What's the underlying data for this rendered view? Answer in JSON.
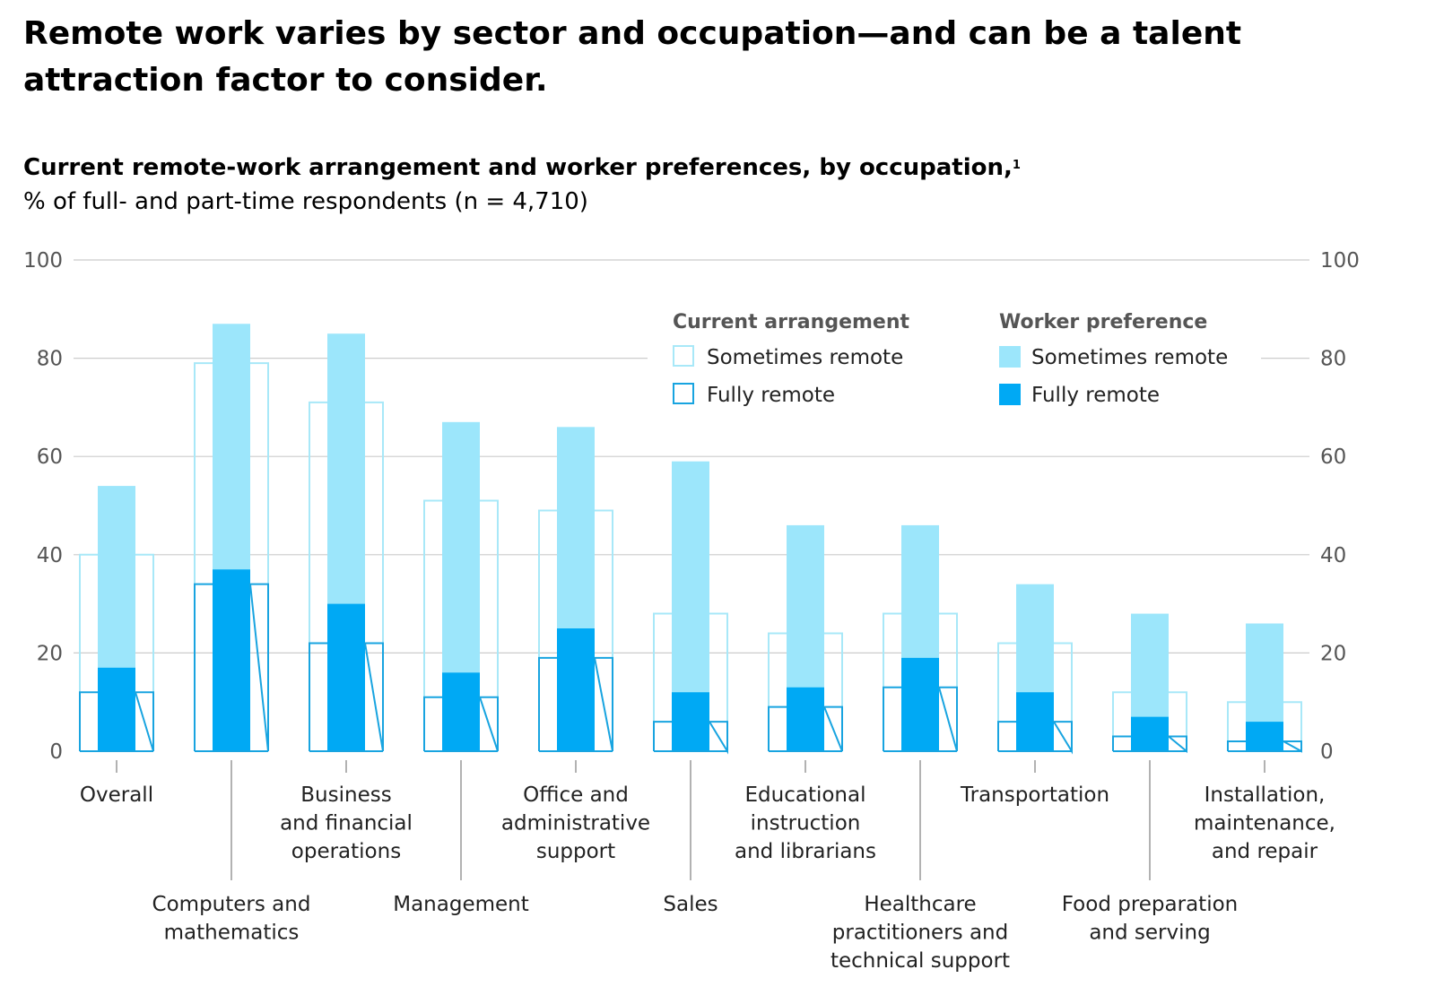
{
  "headline": "Remote work varies by sector and occupation—and can be a talent attraction factor to consider.",
  "chart_data": {
    "type": "bar",
    "title": "Current remote-work arrangement and worker preferences, by occupation,",
    "title_footnote": "1",
    "subtitle": "% of full- and part-time respondents (n = 4,710)",
    "ylim": [
      0,
      100
    ],
    "yticks": [
      0,
      20,
      40,
      60,
      80,
      100
    ],
    "categories": [
      {
        "lines": [
          "Overall"
        ]
      },
      {
        "lines": [
          "Computers and",
          "mathematics"
        ]
      },
      {
        "lines": [
          "Business",
          "and financial",
          "operations"
        ]
      },
      {
        "lines": [
          "Management"
        ]
      },
      {
        "lines": [
          "Office and",
          "administrative",
          "support"
        ]
      },
      {
        "lines": [
          "Sales"
        ]
      },
      {
        "lines": [
          "Educational",
          "instruction",
          "and librarians"
        ]
      },
      {
        "lines": [
          "Healthcare",
          "practitioners and",
          "technical support"
        ]
      },
      {
        "lines": [
          "Transportation"
        ]
      },
      {
        "lines": [
          "Food preparation",
          "and serving"
        ]
      },
      {
        "lines": [
          "Installation,",
          "maintenance,",
          "and repair"
        ]
      }
    ],
    "series": [
      {
        "name": "Current arrangement – Fully remote",
        "group": "current",
        "values": [
          12,
          34,
          22,
          11,
          19,
          6,
          9,
          13,
          6,
          3,
          2
        ]
      },
      {
        "name": "Current arrangement – Sometimes remote (cumulative total)",
        "group": "current",
        "values": [
          40,
          79,
          71,
          51,
          49,
          28,
          24,
          28,
          22,
          12,
          10
        ]
      },
      {
        "name": "Worker preference – Fully remote",
        "group": "preference",
        "values": [
          17,
          37,
          30,
          16,
          25,
          12,
          13,
          19,
          12,
          7,
          6
        ]
      },
      {
        "name": "Worker preference – Sometimes remote (cumulative total)",
        "group": "preference",
        "values": [
          54,
          87,
          85,
          67,
          66,
          59,
          46,
          46,
          34,
          28,
          26
        ]
      }
    ],
    "legend": {
      "current_title": "Current arrangement",
      "preference_title": "Worker preference",
      "sometimes_label": "Sometimes remote",
      "fully_label": "Fully remote",
      "position": "top-right"
    },
    "colors": {
      "light_fill": "#9ce6fb",
      "dark_fill": "#00a9f4",
      "outline_light": "#a8e8f8",
      "outline_dark": "#18a4e0",
      "grid": "#cccccc"
    }
  }
}
